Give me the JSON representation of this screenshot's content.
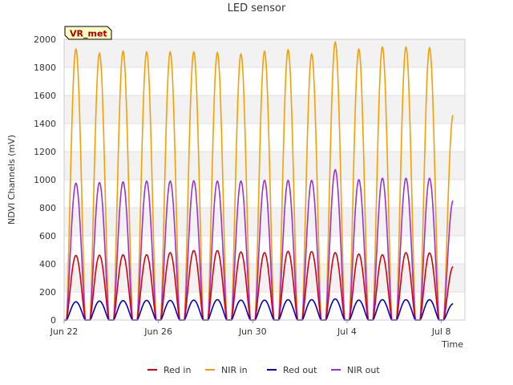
{
  "chart_data": {
    "type": "line",
    "title": "LED sensor",
    "xlabel": "Time",
    "ylabel": "NDVI Channels (mV)",
    "ylim": [
      0,
      2000
    ],
    "yticks": [
      0,
      200,
      400,
      600,
      800,
      1000,
      1200,
      1400,
      1600,
      1800,
      2000
    ],
    "xlim": [
      "Jun 22",
      "Jul 9"
    ],
    "xticks": [
      "Jun 22",
      "Jun 26",
      "Jun 30",
      "Jul 4",
      "Jul 8"
    ],
    "grid": true,
    "background_bands": true,
    "legend_position": "bottom-center",
    "annotation": "VR_met",
    "days": [
      "Jun 22",
      "Jun 23",
      "Jun 24",
      "Jun 25",
      "Jun 26",
      "Jun 27",
      "Jun 28",
      "Jun 29",
      "Jun 30",
      "Jul 1",
      "Jul 2",
      "Jul 3",
      "Jul 4",
      "Jul 5",
      "Jul 6",
      "Jul 7",
      "Jul 8"
    ],
    "series": [
      {
        "name": "Red in",
        "color": "#dd0000",
        "daily_peak": [
          460,
          462,
          465,
          465,
          480,
          495,
          495,
          485,
          480,
          490,
          488,
          480,
          470,
          465,
          480,
          478,
          380
        ]
      },
      {
        "name": "NIR in",
        "color": "#f5a000",
        "daily_peak": [
          1930,
          1900,
          1915,
          1910,
          1910,
          1910,
          1905,
          1895,
          1915,
          1925,
          1895,
          1980,
          1930,
          1945,
          1945,
          1940,
          1460
        ]
      },
      {
        "name": "Red out",
        "color": "#0000cc",
        "daily_peak": [
          130,
          135,
          138,
          140,
          140,
          142,
          145,
          142,
          142,
          145,
          145,
          150,
          142,
          145,
          145,
          145,
          115
        ]
      },
      {
        "name": "NIR out",
        "color": "#9b2fdd",
        "daily_peak": [
          975,
          980,
          985,
          990,
          990,
          992,
          990,
          990,
          995,
          995,
          995,
          1070,
          1000,
          1010,
          1010,
          1010,
          850
        ]
      }
    ]
  }
}
